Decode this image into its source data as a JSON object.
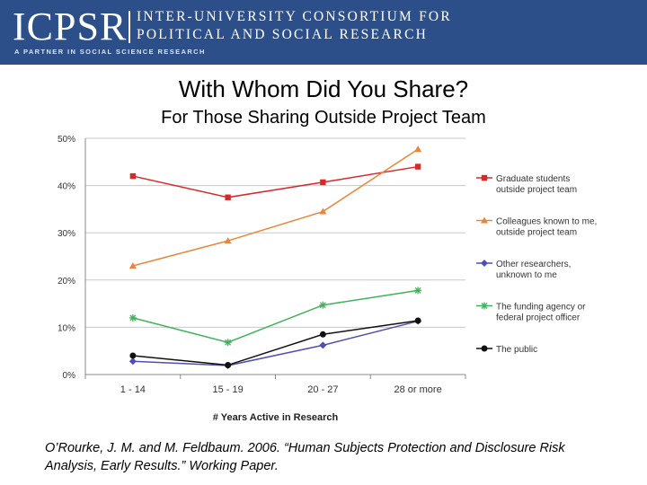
{
  "header": {
    "logo_text": "ICPSR",
    "org_line1": "INTER-UNIVERSITY CONSORTIUM FOR",
    "org_line2": "POLITICAL AND SOCIAL RESEARCH",
    "tagline": "A PARTNER IN SOCIAL SCIENCE RESEARCH",
    "banner_color": "#2c4f8a"
  },
  "slide": {
    "title": "With Whom Did You Share?",
    "subtitle": "For Those Sharing Outside Project Team",
    "citation": "O’Rourke, J. M. and M. Feldbaum. 2006. “Human Subjects Protection and Disclosure Risk Analysis, Early Results.” Working Paper."
  },
  "chart_data": {
    "type": "line",
    "title": "",
    "xlabel": "# Years Active in Research",
    "ylabel": "",
    "categories": [
      "1 - 14",
      "15 - 19",
      "20 - 27",
      "28 or more"
    ],
    "ylim": [
      0,
      50
    ],
    "yticks": [
      0,
      10,
      20,
      30,
      40,
      50
    ],
    "ytick_labels": [
      "0%",
      "10%",
      "20%",
      "30%",
      "40%",
      "50%"
    ],
    "grid": true,
    "legend_position": "right",
    "series": [
      {
        "name": "Graduate students outside project team",
        "legend_lines": [
          "Graduate students",
          "outside project team"
        ],
        "color": "#d42a2a",
        "marker": "square",
        "values": [
          42,
          37.5,
          40.7,
          44
        ]
      },
      {
        "name": "Colleagues known to me, outside project team",
        "legend_lines": [
          "Colleagues known to me,",
          "outside project team"
        ],
        "color": "#e8873a",
        "marker": "triangle",
        "values": [
          23,
          28.3,
          34.5,
          47.7
        ]
      },
      {
        "name": "Other researchers, unknown to me",
        "legend_lines": [
          "Other researchers,",
          "unknown to me"
        ],
        "color": "#4f4fb4",
        "marker": "diamond",
        "values": [
          2.8,
          1.9,
          6.2,
          11.3
        ]
      },
      {
        "name": "The funding agency or federal project officer",
        "legend_lines": [
          "The funding agency or",
          "federal project officer"
        ],
        "color": "#3fb35a",
        "marker": "asterisk",
        "values": [
          12,
          6.8,
          14.7,
          17.8
        ]
      },
      {
        "name": "The public",
        "legend_lines": [
          "The public"
        ],
        "color": "#111111",
        "marker": "circle",
        "values": [
          4,
          2,
          8.5,
          11.4
        ]
      }
    ]
  }
}
